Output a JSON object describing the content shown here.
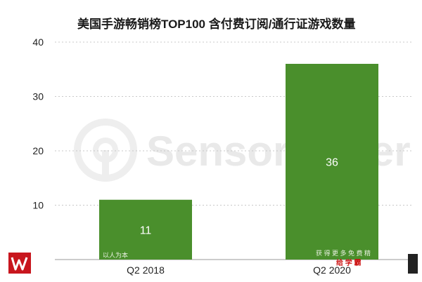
{
  "chart_data": {
    "type": "bar",
    "title": "美国手游畅销榜TOP100  含付费订阅/通行证游戏数量",
    "categories": [
      "Q2  2018",
      "Q2  2020"
    ],
    "values": [
      11,
      36
    ],
    "data_labels": [
      "11",
      "36"
    ],
    "ylim": [
      0,
      40
    ],
    "yticks": [
      "10",
      "20",
      "30",
      "40"
    ],
    "grid": true,
    "bar_color": "#4a8f2c",
    "grid_color": "#c8c8c8"
  },
  "watermark": {
    "text": "SensorTower",
    "icon": "sensor-tower-logo-icon"
  },
  "overlays": {
    "left_bar_text": "以人为本",
    "right_bar_text": "获 得 更 多 免 费 精",
    "right_bar_red_text": "给 学 霸"
  },
  "corner_logo": {
    "icon": "red-w-logo-icon",
    "color": "#c8161e"
  }
}
